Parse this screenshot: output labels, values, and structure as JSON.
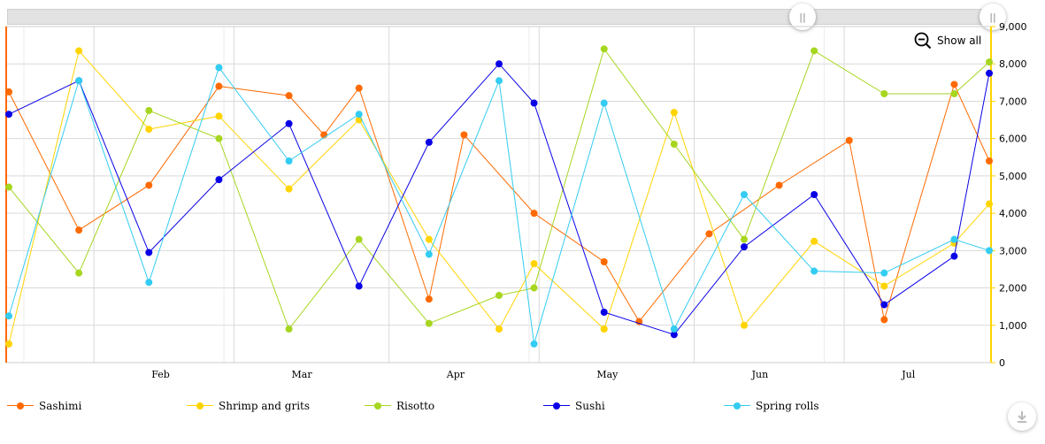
{
  "toolbar": {
    "show_all_label": "Show all",
    "left_handle_glyph": "||",
    "right_handle_glyph": "||",
    "download_icon": "download-icon",
    "zoom_icon": "zoom-out-icon"
  },
  "colors": {
    "left_axis": "#ff6a00",
    "right_axis": "#ffd400",
    "grid": "#d9d9d9"
  },
  "chart_data": {
    "type": "line",
    "title": "",
    "xlabel": "",
    "ylabel": "",
    "ylim": [
      0,
      9000
    ],
    "grid": true,
    "legend_position": "bottom",
    "x_ticks": [
      "Feb",
      "Mar",
      "Apr",
      "May",
      "Jun",
      "Jul"
    ],
    "x": [
      "2023-01-15",
      "2023-01-22",
      "2023-02-01",
      "2023-02-08",
      "2023-02-15",
      "2023-02-22",
      "2023-03-01",
      "2023-03-08",
      "2023-03-15",
      "2023-03-22",
      "2023-03-29",
      "2023-04-05",
      "2023-04-12",
      "2023-04-19",
      "2023-04-26",
      "2023-05-03",
      "2023-05-10",
      "2023-05-17",
      "2023-05-24",
      "2023-05-31",
      "2023-06-07",
      "2023-06-14",
      "2023-06-21",
      "2023-06-28",
      "2023-07-05",
      "2023-07-12",
      "2023-07-19",
      "2023-07-26"
    ],
    "x_ticks_values": [
      "2023-02-01",
      "2023-03-01",
      "2023-04-01",
      "2023-05-01",
      "2023-06-01",
      "2023-07-01"
    ],
    "y_ticks": [
      "0",
      "1,000",
      "2,000",
      "3,000",
      "4,000",
      "5,000",
      "6,000",
      "7,000",
      "8,000",
      "9,000"
    ],
    "y_tick_values": [
      0,
      1000,
      2000,
      3000,
      4000,
      5000,
      6000,
      7000,
      8000,
      9000
    ],
    "series": [
      {
        "name": "Sashimi",
        "color": "#ff6a00",
        "x": [
          "2023-01-15",
          "2023-01-29",
          "2023-02-12",
          "2023-02-26",
          "2023-03-12",
          "2023-03-19",
          "2023-03-26",
          "2023-04-09",
          "2023-04-16",
          "2023-04-30",
          "2023-05-14",
          "2023-05-21",
          "2023-06-04",
          "2023-06-18",
          "2023-07-02",
          "2023-07-09",
          "2023-07-23",
          "2023-07-30"
        ],
        "values": [
          7250,
          3550,
          4750,
          7400,
          7150,
          6100,
          7350,
          1700,
          6100,
          4000,
          2700,
          1100,
          3450,
          4750,
          5950,
          1150,
          7450,
          5400
        ]
      },
      {
        "name": "Shrimp and grits",
        "color": "#ffd400",
        "x": [
          "2023-01-15",
          "2023-01-29",
          "2023-02-12",
          "2023-02-26",
          "2023-03-12",
          "2023-03-26",
          "2023-04-09",
          "2023-04-23",
          "2023-04-30",
          "2023-05-14",
          "2023-05-28",
          "2023-06-11",
          "2023-06-25",
          "2023-07-09",
          "2023-07-23",
          "2023-07-30"
        ],
        "values": [
          500,
          8350,
          6250,
          6600,
          4650,
          6500,
          3300,
          900,
          2650,
          900,
          6700,
          1000,
          3250,
          2050,
          3200,
          4250
        ]
      },
      {
        "name": "Risotto",
        "color": "#a6d61f",
        "x": [
          "2023-01-15",
          "2023-01-29",
          "2023-02-12",
          "2023-02-26",
          "2023-03-12",
          "2023-03-26",
          "2023-04-09",
          "2023-04-23",
          "2023-04-30",
          "2023-05-14",
          "2023-05-28",
          "2023-06-11",
          "2023-06-25",
          "2023-07-09",
          "2023-07-23",
          "2023-07-30"
        ],
        "values": [
          4700,
          2400,
          6750,
          6000,
          900,
          3300,
          1050,
          1800,
          2000,
          8400,
          5850,
          3300,
          8350,
          7200,
          7200,
          8050
        ]
      },
      {
        "name": "Sushi",
        "color": "#0a00e6",
        "x": [
          "2023-01-15",
          "2023-01-29",
          "2023-02-12",
          "2023-02-26",
          "2023-03-12",
          "2023-03-26",
          "2023-04-09",
          "2023-04-23",
          "2023-04-30",
          "2023-05-14",
          "2023-05-28",
          "2023-06-11",
          "2023-06-25",
          "2023-07-09",
          "2023-07-23",
          "2023-07-30"
        ],
        "values": [
          6650,
          7550,
          2950,
          4900,
          6400,
          2050,
          5900,
          8000,
          6950,
          1350,
          750,
          3100,
          4500,
          1550,
          2850,
          7750
        ]
      },
      {
        "name": "Spring rolls",
        "color": "#33ccf2",
        "x": [
          "2023-01-15",
          "2023-01-29",
          "2023-02-12",
          "2023-02-26",
          "2023-03-12",
          "2023-03-26",
          "2023-04-09",
          "2023-04-23",
          "2023-04-30",
          "2023-05-14",
          "2023-05-28",
          "2023-06-11",
          "2023-06-25",
          "2023-07-09",
          "2023-07-23",
          "2023-07-30"
        ],
        "values": [
          1250,
          7550,
          2150,
          7900,
          5400,
          6650,
          2900,
          7550,
          500,
          6950,
          900,
          4500,
          2450,
          2400,
          3300,
          3000
        ]
      }
    ]
  }
}
